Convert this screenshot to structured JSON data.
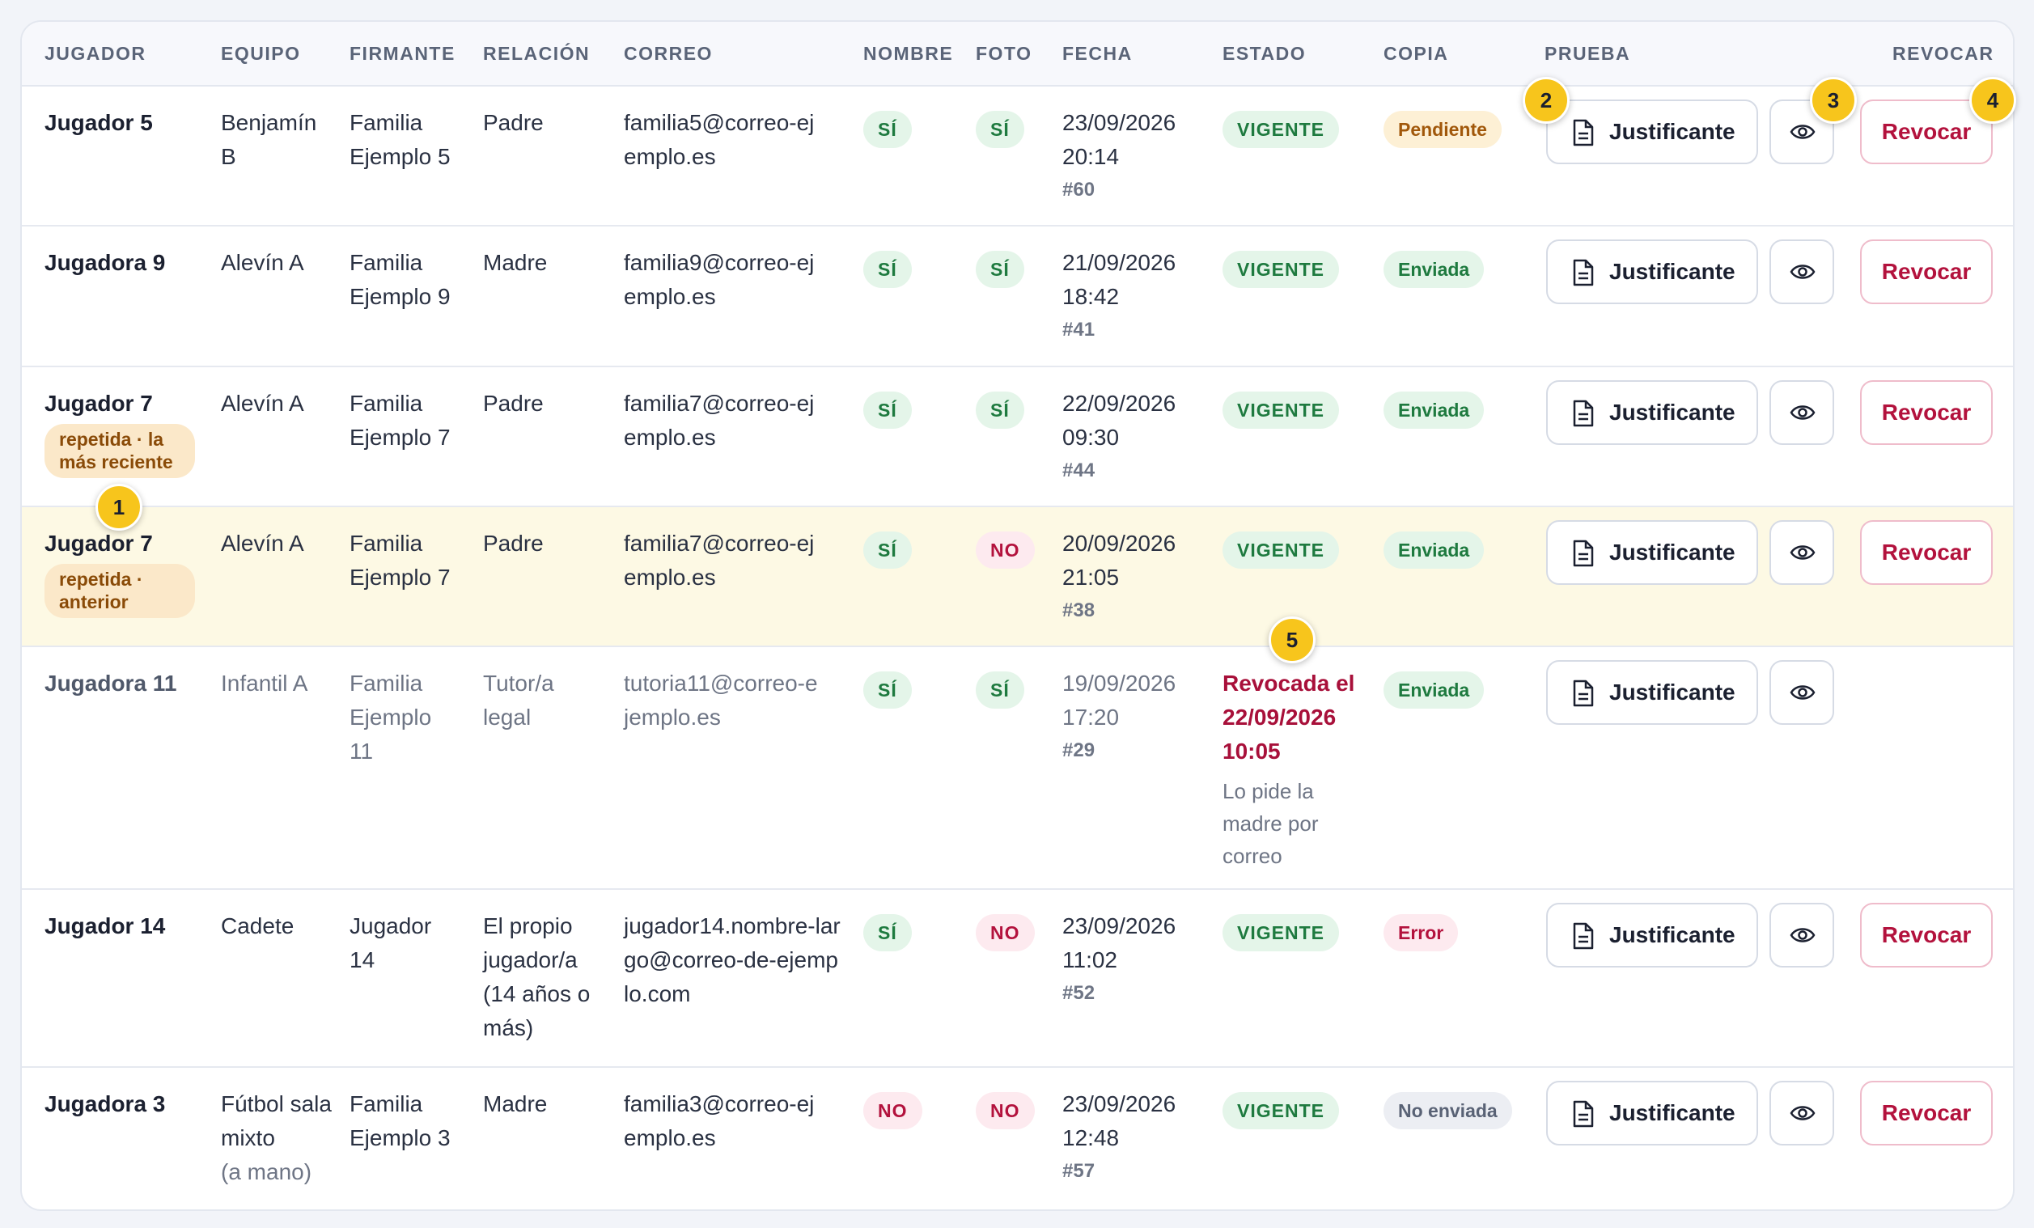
{
  "headers": {
    "jugador": "JUGADOR",
    "equipo": "EQUIPO",
    "firmante": "FIRMANTE",
    "relacion": "RELACIÓN",
    "correo": "CORREO",
    "nombre": "NOMBRE",
    "foto": "FOTO",
    "fecha": "FECHA",
    "estado": "ESTADO",
    "copia": "COPIA",
    "prueba": "PRUEBA",
    "revocar": "REVOCAR"
  },
  "rows": [
    {
      "jugador": "Jugador 5",
      "equipo": "Benjamín B",
      "firmante": "Familia Ejemplo 5",
      "relacion": "Padre",
      "correo": "familia5@correo-ejemplo.es",
      "nombre": "SÍ",
      "foto": "SÍ",
      "fecha": "23/09/2026 20:14",
      "id": "#60",
      "estado": "VIGENTE",
      "copia": "Pendiente",
      "justificante": "Justificante",
      "revocar": "Revocar"
    },
    {
      "jugador": "Jugadora 9",
      "equipo": "Alevín A",
      "firmante": "Familia Ejemplo 9",
      "relacion": "Madre",
      "correo": "familia9@correo-ejemplo.es",
      "nombre": "SÍ",
      "foto": "SÍ",
      "fecha": "21/09/2026 18:42",
      "id": "#41",
      "estado": "VIGENTE",
      "copia": "Enviada",
      "justificante": "Justificante",
      "revocar": "Revocar"
    },
    {
      "jugador": "Jugador 7",
      "badge": "repetida · la más reciente",
      "equipo": "Alevín A",
      "firmante": "Familia Ejemplo 7",
      "relacion": "Padre",
      "correo": "familia7@correo-ejemplo.es",
      "nombre": "SÍ",
      "foto": "SÍ",
      "fecha": "22/09/2026 09:30",
      "id": "#44",
      "estado": "VIGENTE",
      "copia": "Enviada",
      "justificante": "Justificante",
      "revocar": "Revocar"
    },
    {
      "jugador": "Jugador 7",
      "badge": "repetida · anterior",
      "equipo": "Alevín A",
      "firmante": "Familia Ejemplo 7",
      "relacion": "Padre",
      "correo": "familia7@correo-ejemplo.es",
      "nombre": "SÍ",
      "foto": "NO",
      "fecha": "20/09/2026 21:05",
      "id": "#38",
      "estado": "VIGENTE",
      "copia": "Enviada",
      "justificante": "Justificante",
      "revocar": "Revocar"
    },
    {
      "jugador": "Jugadora 11",
      "equipo": "Infantil A",
      "firmante": "Familia Ejemplo 11",
      "relacion": "Tutor/a legal",
      "correo": "tutoria11@correo-ejemplo.es",
      "nombre": "SÍ",
      "foto": "SÍ",
      "fecha": "19/09/2026 17:20",
      "id": "#29",
      "estado_revocada": "Revocada el 22/09/2026 10:05",
      "motivo": "Lo pide la madre por correo",
      "copia": "Enviada",
      "justificante": "Justificante"
    },
    {
      "jugador": "Jugador 14",
      "equipo": "Cadete",
      "firmante": "Jugador 14",
      "relacion": "El propio jugador/a (14 años o más)",
      "correo": "jugador14.nombre-largo@correo-de-ejemplo.com",
      "nombre": "SÍ",
      "foto": "NO",
      "fecha": "23/09/2026 11:02",
      "id": "#52",
      "estado": "VIGENTE",
      "copia": "Error",
      "justificante": "Justificante",
      "revocar": "Revocar"
    },
    {
      "jugador": "Jugadora 3",
      "equipo": "Fútbol sala mixto",
      "equipo_extra": "(a mano)",
      "firmante": "Familia Ejemplo 3",
      "relacion": "Madre",
      "correo": "familia3@correo-ejemplo.es",
      "nombre": "NO",
      "foto": "NO",
      "fecha": "23/09/2026 12:48",
      "id": "#57",
      "estado": "VIGENTE",
      "copia": "No enviada",
      "justificante": "Justificante",
      "revocar": "Revocar"
    }
  ],
  "markers": [
    "1",
    "2",
    "3",
    "4",
    "5"
  ],
  "icons": {
    "document": "document-icon",
    "eye": "eye-icon"
  },
  "colors": {
    "accent_marker": "#f7c51c",
    "danger": "#b3123d",
    "success": "#1e7a3f",
    "highlight_row": "#fdf9e4"
  }
}
